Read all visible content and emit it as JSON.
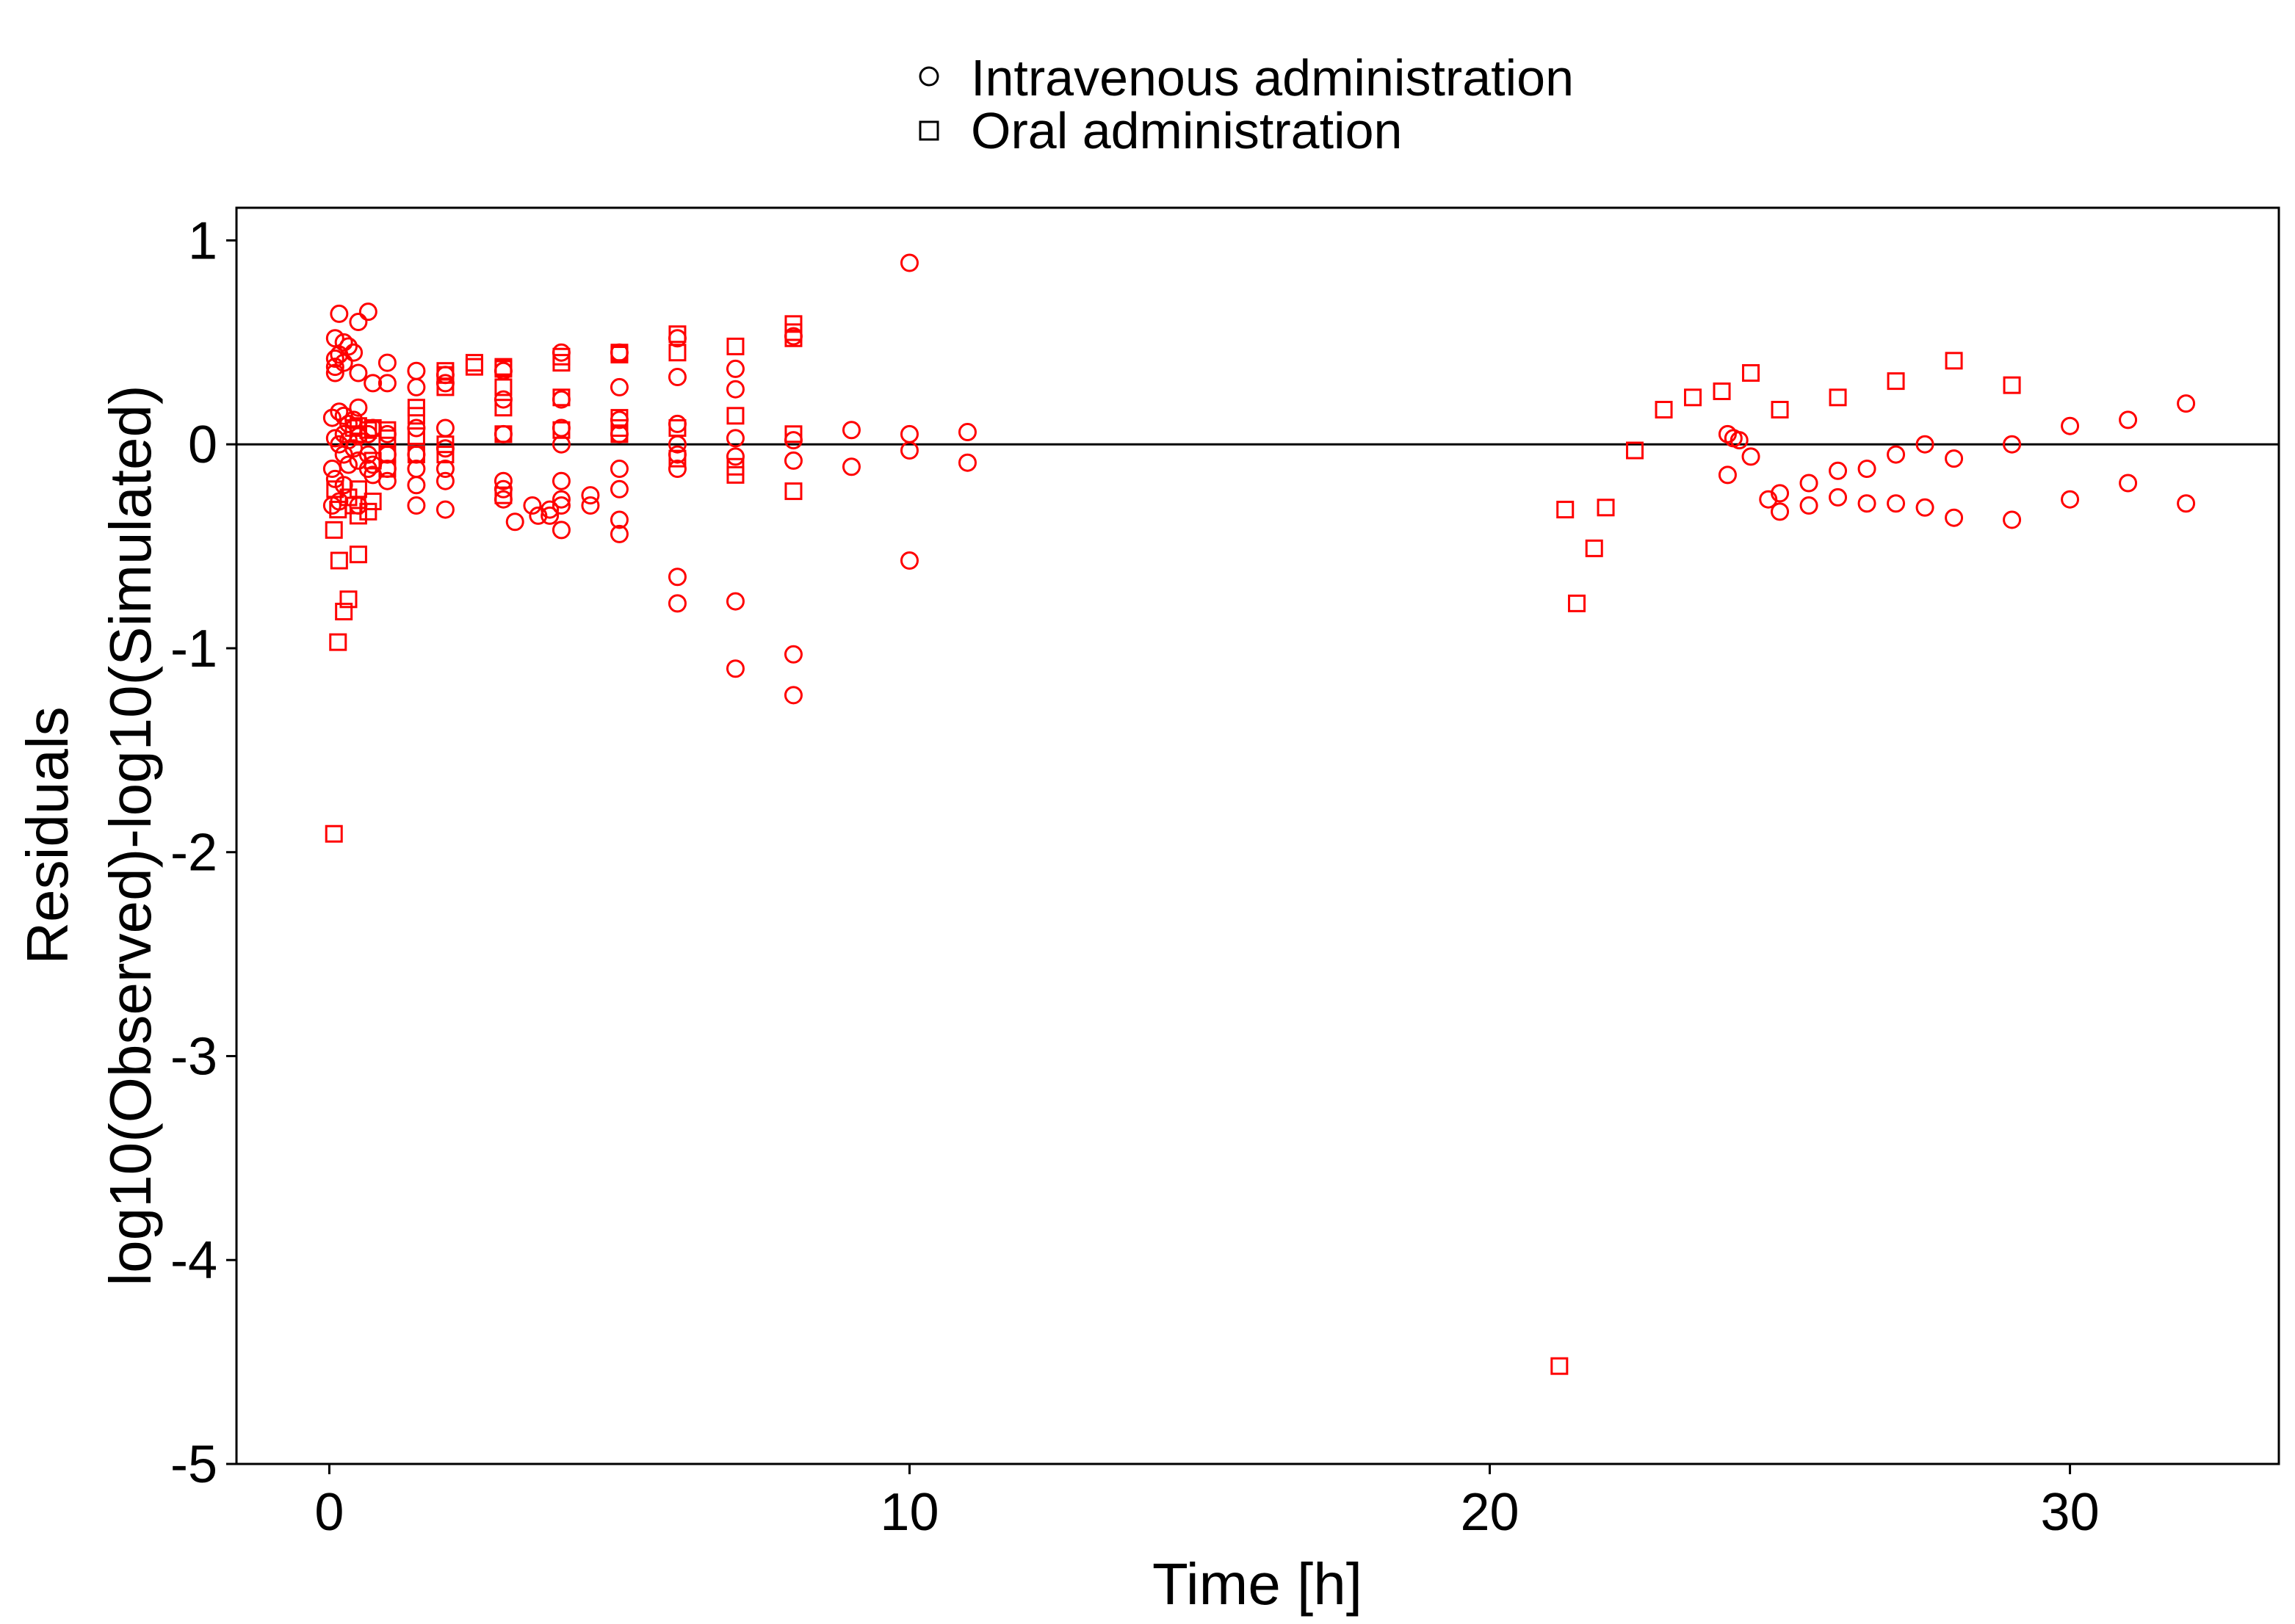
{
  "chart_data": {
    "type": "scatter",
    "title": "",
    "xlabel": "Time [h]",
    "ylabel_line1": "Residuals",
    "ylabel_line2": "log10(Observed)-log10(Simulated)",
    "xlim": [
      -1.6,
      33.6
    ],
    "ylim": [
      -5,
      1.16
    ],
    "x_ticks": [
      0,
      10,
      20,
      30
    ],
    "y_ticks": [
      -5,
      -4,
      -3,
      -2,
      -1,
      0,
      1
    ],
    "reference_line_y": 0,
    "grid": false,
    "legend_position": "top-center",
    "marker_color": "#ff0000",
    "series": [
      {
        "name": "Intravenous administration",
        "marker": "circle",
        "points": [
          [
            0.05,
            0.13
          ],
          [
            0.05,
            -0.12
          ],
          [
            0.05,
            -0.3
          ],
          [
            0.1,
            0.52
          ],
          [
            0.1,
            0.42
          ],
          [
            0.1,
            0.38
          ],
          [
            0.1,
            0.35
          ],
          [
            0.1,
            0.03
          ],
          [
            0.1,
            -0.17
          ],
          [
            0.17,
            0.64
          ],
          [
            0.17,
            0.44
          ],
          [
            0.17,
            0.16
          ],
          [
            0.17,
            0.0
          ],
          [
            0.17,
            -0.28
          ],
          [
            0.25,
            0.5
          ],
          [
            0.25,
            0.4
          ],
          [
            0.25,
            0.14
          ],
          [
            0.25,
            0.05
          ],
          [
            0.25,
            -0.05
          ],
          [
            0.25,
            -0.2
          ],
          [
            0.33,
            0.48
          ],
          [
            0.33,
            0.1
          ],
          [
            0.33,
            0.02
          ],
          [
            0.33,
            -0.1
          ],
          [
            0.42,
            0.45
          ],
          [
            0.42,
            0.12
          ],
          [
            0.42,
            -0.02
          ],
          [
            0.5,
            0.6
          ],
          [
            0.5,
            0.35
          ],
          [
            0.5,
            0.18
          ],
          [
            0.5,
            0.04
          ],
          [
            0.5,
            -0.08
          ],
          [
            0.5,
            -0.3
          ],
          [
            0.67,
            0.65
          ],
          [
            0.67,
            0.05
          ],
          [
            0.67,
            -0.05
          ],
          [
            0.67,
            -0.12
          ],
          [
            0.75,
            0.3
          ],
          [
            0.75,
            0.08
          ],
          [
            0.75,
            -0.1
          ],
          [
            0.75,
            -0.15
          ],
          [
            1.0,
            0.4
          ],
          [
            1.0,
            0.3
          ],
          [
            1.0,
            0.05
          ],
          [
            1.0,
            -0.05
          ],
          [
            1.0,
            -0.12
          ],
          [
            1.0,
            -0.18
          ],
          [
            1.5,
            0.36
          ],
          [
            1.5,
            0.28
          ],
          [
            1.5,
            0.08
          ],
          [
            1.5,
            -0.05
          ],
          [
            1.5,
            -0.12
          ],
          [
            1.5,
            -0.2
          ],
          [
            1.5,
            -0.3
          ],
          [
            2.0,
            0.34
          ],
          [
            2.0,
            0.3
          ],
          [
            2.0,
            0.08
          ],
          [
            2.0,
            -0.02
          ],
          [
            2.0,
            -0.12
          ],
          [
            2.0,
            -0.18
          ],
          [
            2.0,
            -0.32
          ],
          [
            3.0,
            0.36
          ],
          [
            3.0,
            0.22
          ],
          [
            3.0,
            0.05
          ],
          [
            3.0,
            -0.18
          ],
          [
            3.0,
            -0.22
          ],
          [
            3.0,
            -0.27
          ],
          [
            3.2,
            -0.38
          ],
          [
            3.5,
            -0.3
          ],
          [
            3.6,
            -0.35
          ],
          [
            3.8,
            -0.32
          ],
          [
            3.8,
            -0.35
          ],
          [
            4.0,
            0.45
          ],
          [
            4.0,
            0.22
          ],
          [
            4.0,
            0.08
          ],
          [
            4.0,
            0.0
          ],
          [
            4.0,
            -0.18
          ],
          [
            4.0,
            -0.27
          ],
          [
            4.0,
            -0.3
          ],
          [
            4.0,
            -0.42
          ],
          [
            4.5,
            -0.25
          ],
          [
            4.5,
            -0.3
          ],
          [
            5.0,
            0.45
          ],
          [
            5.0,
            0.28
          ],
          [
            5.0,
            0.12
          ],
          [
            5.0,
            0.05
          ],
          [
            5.0,
            -0.12
          ],
          [
            5.0,
            -0.22
          ],
          [
            5.0,
            -0.37
          ],
          [
            5.0,
            -0.44
          ],
          [
            6.0,
            0.52
          ],
          [
            6.0,
            0.33
          ],
          [
            6.0,
            0.1
          ],
          [
            6.0,
            0.0
          ],
          [
            6.0,
            -0.05
          ],
          [
            6.0,
            -0.12
          ],
          [
            6.0,
            -0.65
          ],
          [
            6.0,
            -0.78
          ],
          [
            7.0,
            0.37
          ],
          [
            7.0,
            0.27
          ],
          [
            7.0,
            0.03
          ],
          [
            7.0,
            -0.06
          ],
          [
            7.0,
            -0.77
          ],
          [
            7.0,
            -1.1
          ],
          [
            8.0,
            0.53
          ],
          [
            8.0,
            0.02
          ],
          [
            8.0,
            -0.08
          ],
          [
            8.0,
            -1.03
          ],
          [
            8.0,
            -1.23
          ],
          [
            9.0,
            0.07
          ],
          [
            9.0,
            -0.11
          ],
          [
            10.0,
            0.89
          ],
          [
            10.0,
            0.05
          ],
          [
            10.0,
            -0.03
          ],
          [
            10.0,
            -0.57
          ],
          [
            11.0,
            0.06
          ],
          [
            11.0,
            -0.09
          ],
          [
            24.1,
            0.05
          ],
          [
            24.1,
            -0.15
          ],
          [
            24.2,
            0.03
          ],
          [
            24.3,
            0.02
          ],
          [
            24.5,
            -0.06
          ],
          [
            24.8,
            -0.27
          ],
          [
            25.0,
            -0.24
          ],
          [
            25.0,
            -0.33
          ],
          [
            25.5,
            -0.19
          ],
          [
            25.5,
            -0.3
          ],
          [
            26.0,
            -0.13
          ],
          [
            26.0,
            -0.26
          ],
          [
            26.5,
            -0.12
          ],
          [
            26.5,
            -0.29
          ],
          [
            27.0,
            -0.05
          ],
          [
            27.0,
            -0.29
          ],
          [
            27.5,
            0.0
          ],
          [
            27.5,
            -0.31
          ],
          [
            28.0,
            -0.07
          ],
          [
            28.0,
            -0.36
          ],
          [
            29.0,
            0.0
          ],
          [
            29.0,
            -0.37
          ],
          [
            30.0,
            0.09
          ],
          [
            30.0,
            -0.27
          ],
          [
            31.0,
            0.12
          ],
          [
            31.0,
            -0.19
          ],
          [
            32.0,
            0.2
          ],
          [
            32.0,
            -0.29
          ]
        ]
      },
      {
        "name": "Oral administration",
        "marker": "square",
        "points": [
          [
            0.08,
            -0.42
          ],
          [
            0.08,
            -1.91
          ],
          [
            0.1,
            -0.22
          ],
          [
            0.15,
            -0.97
          ],
          [
            0.15,
            -0.32
          ],
          [
            0.17,
            -0.57
          ],
          [
            0.25,
            -0.82
          ],
          [
            0.33,
            -0.76
          ],
          [
            0.33,
            -0.26
          ],
          [
            0.42,
            0.08
          ],
          [
            0.42,
            -0.3
          ],
          [
            0.5,
            0.09
          ],
          [
            0.5,
            0.05
          ],
          [
            0.5,
            -0.22
          ],
          [
            0.5,
            -0.35
          ],
          [
            0.5,
            -0.54
          ],
          [
            0.67,
            0.07
          ],
          [
            0.67,
            -0.33
          ],
          [
            0.75,
            0.08
          ],
          [
            0.75,
            -0.28
          ],
          [
            0.75,
            -0.08
          ],
          [
            1.0,
            0.07
          ],
          [
            1.0,
            0.03
          ],
          [
            1.0,
            -0.05
          ],
          [
            1.0,
            -0.12
          ],
          [
            1.5,
            0.18
          ],
          [
            1.5,
            0.14
          ],
          [
            1.5,
            0.04
          ],
          [
            1.5,
            -0.05
          ],
          [
            2.0,
            0.36
          ],
          [
            2.0,
            0.34
          ],
          [
            2.0,
            0.28
          ],
          [
            2.0,
            0.0
          ],
          [
            2.0,
            -0.05
          ],
          [
            2.5,
            0.4
          ],
          [
            2.5,
            0.38
          ],
          [
            3.0,
            0.38
          ],
          [
            3.0,
            0.37
          ],
          [
            3.0,
            0.28
          ],
          [
            3.0,
            0.18
          ],
          [
            3.0,
            0.05
          ],
          [
            3.0,
            -0.25
          ],
          [
            4.0,
            0.43
          ],
          [
            4.0,
            0.4
          ],
          [
            4.0,
            0.23
          ],
          [
            4.0,
            0.07
          ],
          [
            5.0,
            0.45
          ],
          [
            5.0,
            0.44
          ],
          [
            5.0,
            0.13
          ],
          [
            5.0,
            0.08
          ],
          [
            5.0,
            0.05
          ],
          [
            6.0,
            0.54
          ],
          [
            6.0,
            0.45
          ],
          [
            6.0,
            0.08
          ],
          [
            6.0,
            -0.07
          ],
          [
            7.0,
            0.48
          ],
          [
            7.0,
            0.14
          ],
          [
            7.0,
            -0.11
          ],
          [
            7.0,
            -0.15
          ],
          [
            8.0,
            0.59
          ],
          [
            8.0,
            0.55
          ],
          [
            8.0,
            0.52
          ],
          [
            8.0,
            0.05
          ],
          [
            8.0,
            -0.23
          ],
          [
            21.2,
            -4.52
          ],
          [
            21.3,
            -0.32
          ],
          [
            21.5,
            -0.78
          ],
          [
            21.8,
            -0.51
          ],
          [
            22.0,
            -0.31
          ],
          [
            22.5,
            -0.03
          ],
          [
            23.0,
            0.17
          ],
          [
            23.5,
            0.23
          ],
          [
            24.0,
            0.26
          ],
          [
            24.5,
            0.35
          ],
          [
            25.0,
            0.17
          ],
          [
            26.0,
            0.23
          ],
          [
            27.0,
            0.31
          ],
          [
            28.0,
            0.41
          ],
          [
            29.0,
            0.29
          ]
        ]
      }
    ]
  }
}
